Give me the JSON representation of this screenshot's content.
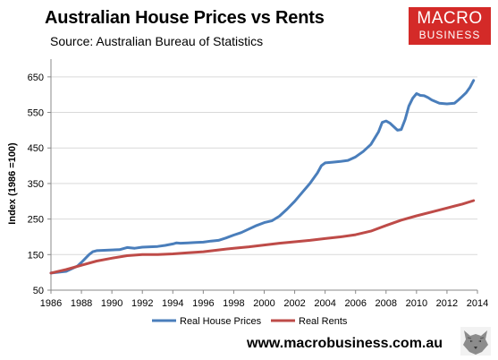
{
  "header": {
    "title": "Australian House Prices vs Rents",
    "subtitle": "Source: Australian Bureau of Statistics"
  },
  "logo": {
    "line1": "MACRO",
    "line2": "BUSINESS",
    "bg_color": "#d42a28"
  },
  "footer": {
    "website": "www.macrobusiness.com.au",
    "mascot_icon": "wolf-icon"
  },
  "chart_data": {
    "type": "line",
    "ylabel": "Index (1986 =100)",
    "xlabel": "",
    "xlim": [
      1986,
      2014
    ],
    "ylim": [
      50,
      700
    ],
    "yticks": [
      50,
      150,
      250,
      350,
      450,
      550,
      650
    ],
    "xticks": [
      1986,
      1988,
      1990,
      1992,
      1994,
      1996,
      1998,
      2000,
      2002,
      2004,
      2006,
      2008,
      2010,
      2012,
      2014
    ],
    "grid": "horizontal",
    "legend_position": "bottom",
    "series": [
      {
        "name": "Real House Prices",
        "color": "#4a7ebb",
        "x": [
          1986,
          1987,
          1987.75,
          1988,
          1988.5,
          1988.75,
          1989,
          1989.5,
          1990,
          1990.5,
          1991,
          1991.5,
          1992,
          1992.5,
          1993,
          1993.5,
          1994,
          1994.25,
          1994.5,
          1995,
          1995.5,
          1996,
          1996.5,
          1997,
          1997.5,
          1998,
          1998.5,
          1999,
          1999.5,
          2000,
          2000.5,
          2001,
          2001.5,
          2002,
          2002.5,
          2003,
          2003.5,
          2003.75,
          2004,
          2004.5,
          2005,
          2005.5,
          2006,
          2006.5,
          2007,
          2007.5,
          2007.75,
          2008,
          2008.25,
          2008.5,
          2008.75,
          2009,
          2009.25,
          2009.5,
          2009.75,
          2010,
          2010.25,
          2010.5,
          2010.75,
          2011,
          2011.5,
          2012,
          2012.5,
          2012.75,
          2013,
          2013.25,
          2013.5,
          2013.75
        ],
        "values": [
          98,
          103,
          118,
          128,
          150,
          158,
          161,
          162,
          163,
          164,
          170,
          168,
          171,
          172,
          173,
          176,
          180,
          183,
          182,
          183,
          184,
          185,
          188,
          190,
          197,
          205,
          212,
          222,
          232,
          240,
          245,
          258,
          278,
          300,
          325,
          350,
          380,
          400,
          408,
          410,
          412,
          415,
          425,
          440,
          460,
          495,
          522,
          526,
          520,
          510,
          500,
          502,
          530,
          568,
          590,
          603,
          598,
          597,
          592,
          585,
          576,
          574,
          576,
          585,
          595,
          605,
          620,
          640
        ]
      },
      {
        "name": "Real Rents",
        "color": "#be4b48",
        "x": [
          1986,
          1987,
          1988,
          1989,
          1990,
          1991,
          1992,
          1993,
          1994,
          1995,
          1996,
          1997,
          1998,
          1999,
          2000,
          2001,
          2002,
          2003,
          2004,
          2005,
          2006,
          2007,
          2008,
          2009,
          2010,
          2011,
          2012,
          2013,
          2013.75
        ],
        "values": [
          98,
          108,
          120,
          132,
          140,
          147,
          150,
          150,
          152,
          155,
          158,
          163,
          168,
          172,
          177,
          182,
          186,
          190,
          195,
          200,
          206,
          216,
          232,
          247,
          259,
          270,
          281,
          292,
          302
        ]
      }
    ]
  }
}
